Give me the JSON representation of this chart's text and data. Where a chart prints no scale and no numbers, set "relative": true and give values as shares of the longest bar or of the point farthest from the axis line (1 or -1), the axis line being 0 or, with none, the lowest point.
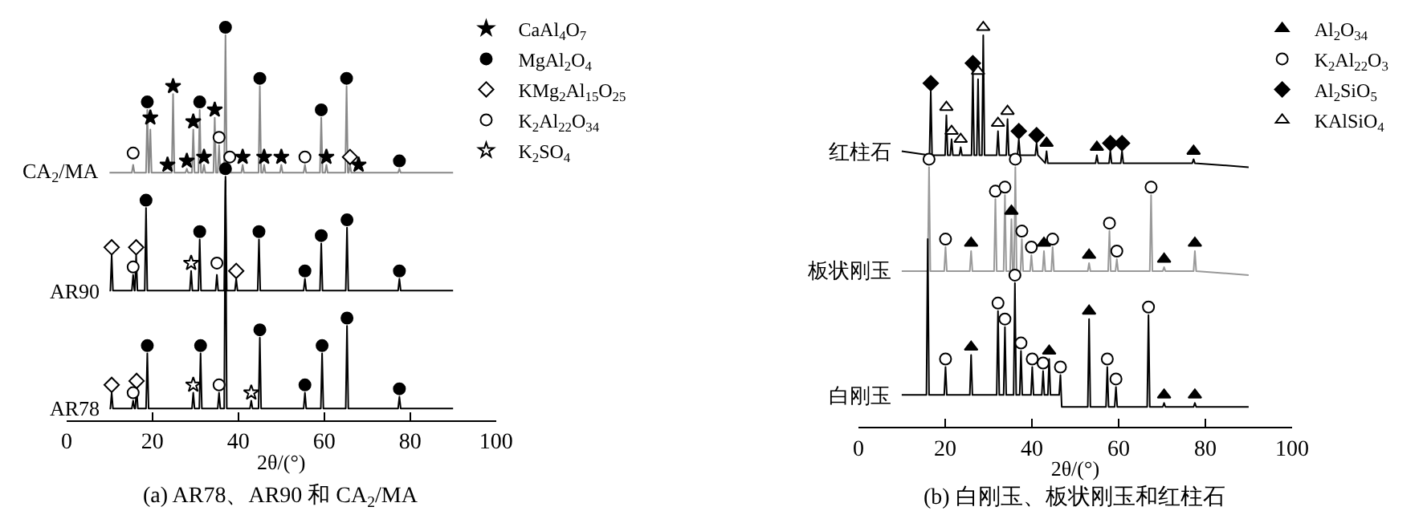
{
  "chart_data": [
    {
      "type": "line",
      "relative": true,
      "title": "(a) AR78、AR90 和 CA$_{2}$/MA",
      "xlabel": "2θ/(°)",
      "xlim": [
        0,
        100
      ],
      "xticks": [
        0,
        20,
        40,
        60,
        80,
        100
      ],
      "grid": false,
      "legend": "top right",
      "tick_labels": "x",
      "series": [
        {
          "name": "CA$_{2}$/MA",
          "color": "#888888",
          "x": [
            10,
            15.2,
            15.5,
            15.8,
            18.5,
            18.8,
            19.1,
            19.2,
            19.5,
            19.8,
            23.2,
            23.5,
            23.8,
            24.5,
            24.8,
            25.1,
            27.7,
            28,
            28.3,
            29.2,
            29.5,
            29.8,
            30.7,
            31,
            31.3,
            31.7,
            32,
            32.3,
            34.2,
            34.5,
            34.8,
            35.2,
            35.5,
            35.8,
            36.7,
            37,
            37.3,
            37.7,
            38,
            38.3,
            40.7,
            41,
            41.3,
            44.7,
            45,
            45.3,
            45.7,
            46,
            46.3,
            49.7,
            50,
            50.3,
            55.2,
            55.5,
            55.8,
            59,
            59.3,
            59.6,
            60.2,
            60.5,
            60.8,
            64.9,
            65.2,
            65.5,
            65.7,
            66,
            66.3,
            67.7,
            68,
            68.3,
            77.2,
            77.5,
            77.8,
            90
          ],
          "values": [
            0.63,
            0.63,
            0.65,
            0.63,
            0.63,
            0.79,
            0.63,
            0.63,
            0.74,
            0.63,
            0.63,
            0.63,
            0.63,
            0.63,
            0.83,
            0.63,
            0.63,
            0.64,
            0.63,
            0.63,
            0.74,
            0.63,
            0.63,
            0.79,
            0.63,
            0.63,
            0.65,
            0.63,
            0.63,
            0.77,
            0.63,
            0.63,
            0.7,
            0.63,
            0.63,
            0.98,
            0.63,
            0.63,
            0.65,
            0.63,
            0.63,
            0.65,
            0.63,
            0.63,
            0.85,
            0.63,
            0.63,
            0.65,
            0.63,
            0.63,
            0.65,
            0.63,
            0.63,
            0.65,
            0.63,
            0.63,
            0.77,
            0.63,
            0.63,
            0.65,
            0.63,
            0.63,
            0.85,
            0.63,
            0.63,
            0.65,
            0.63,
            0.63,
            0.63,
            0.63,
            0.63,
            0.64,
            0.63,
            0.63
          ]
        },
        {
          "name": "AR90",
          "color": "#000000",
          "x": [
            10,
            10.2,
            10.5,
            10.8,
            15.2,
            15.5,
            15.8,
            15.9,
            16.2,
            16.5,
            18.2,
            18.5,
            18.8,
            28.7,
            29,
            29.3,
            30.7,
            31,
            31.3,
            34.7,
            35,
            35.3,
            36.7,
            37,
            37.3,
            39.2,
            39.5,
            39.8,
            44.5,
            44.8,
            45.1,
            55.2,
            55.5,
            55.8,
            59,
            59.3,
            59.6,
            65,
            65.3,
            65.6,
            77.2,
            77.5,
            77.8,
            90
          ],
          "values": [
            0.33,
            0.33,
            0.42,
            0.33,
            0.33,
            0.37,
            0.33,
            0.33,
            0.42,
            0.33,
            0.33,
            0.54,
            0.33,
            0.33,
            0.38,
            0.33,
            0.33,
            0.46,
            0.33,
            0.33,
            0.37,
            0.33,
            0.33,
            0.62,
            0.33,
            0.33,
            0.36,
            0.33,
            0.33,
            0.46,
            0.33,
            0.33,
            0.36,
            0.33,
            0.33,
            0.45,
            0.33,
            0.33,
            0.49,
            0.33,
            0.33,
            0.36,
            0.33,
            0.33
          ]
        },
        {
          "name": "AR78",
          "color": "#000000",
          "x": [
            10,
            10.2,
            10.5,
            10.8,
            15.2,
            15.5,
            15.8,
            16,
            16.3,
            16.6,
            18.5,
            18.8,
            19.1,
            29.2,
            29.5,
            29.8,
            30.9,
            31.2,
            31.5,
            35.2,
            35.5,
            35.8,
            36.7,
            37,
            37.3,
            42.7,
            43,
            43.3,
            44.7,
            45,
            45.3,
            55.2,
            55.5,
            55.8,
            59.2,
            59.5,
            59.8,
            65,
            65.3,
            65.6,
            77.2,
            77.5,
            77.8,
            90
          ],
          "values": [
            0.03,
            0.03,
            0.07,
            0.03,
            0.03,
            0.05,
            0.03,
            0.03,
            0.08,
            0.03,
            0.03,
            0.17,
            0.03,
            0.03,
            0.07,
            0.03,
            0.03,
            0.17,
            0.03,
            0.03,
            0.07,
            0.03,
            0.03,
            0.61,
            0.03,
            0.03,
            0.05,
            0.03,
            0.03,
            0.21,
            0.03,
            0.03,
            0.07,
            0.03,
            0.03,
            0.17,
            0.03,
            0.03,
            0.24,
            0.03,
            0.03,
            0.06,
            0.03,
            0.03
          ]
        },
        {
          "name": "CaAl$_{4}$O$_{7}$",
          "type": "scatter",
          "marker": "star",
          "color": "#000000",
          "x": [
            19.5,
            23.5,
            24.8,
            28,
            29.5,
            32,
            34.5,
            41,
            46,
            50,
            60.5,
            68
          ],
          "values": [
            0.77,
            0.65,
            0.85,
            0.66,
            0.76,
            0.67,
            0.79,
            0.67,
            0.67,
            0.67,
            0.67,
            0.65
          ]
        },
        {
          "name": "MgAl$_{2}$O$_{4}$",
          "type": "scatter",
          "marker": "circle",
          "color": "#000000",
          "x": [
            18.8,
            31,
            37,
            45,
            59.3,
            65.2,
            77.5,
            18.5,
            31,
            37,
            44.8,
            55.5,
            59.3,
            65.3,
            77.5,
            18.8,
            31.2,
            45,
            55.5,
            59.5,
            65.3,
            77.5
          ],
          "values": [
            0.81,
            0.81,
            1.0,
            0.87,
            0.79,
            0.87,
            0.66,
            0.56,
            0.48,
            0.64,
            0.48,
            0.38,
            0.47,
            0.51,
            0.38,
            0.19,
            0.19,
            0.23,
            0.09,
            0.19,
            0.26,
            0.08
          ]
        },
        {
          "name": "KMg$_{2}$Al$_{15}$O$_{25}$",
          "type": "scatter",
          "marker": "diamond",
          "color": "#ffffff",
          "x": [
            66,
            10.5,
            16.2,
            39.5,
            10.5,
            16.3
          ],
          "values": [
            0.67,
            0.44,
            0.44,
            0.38,
            0.09,
            0.1
          ]
        },
        {
          "name": "K$_{2}$Al$_{22}$O$_{34}$",
          "type": "scatter",
          "marker": "circle",
          "color": "#ffffff",
          "x": [
            15.5,
            35.5,
            38,
            55.5,
            15.5,
            35,
            15.5,
            35.5
          ],
          "values": [
            0.68,
            0.72,
            0.67,
            0.67,
            0.39,
            0.4,
            0.07,
            0.09
          ]
        },
        {
          "name": "K$_{2}$SO$_{4}$",
          "type": "scatter",
          "marker": "star",
          "color": "#ffffff",
          "x": [
            29,
            29.5,
            43
          ],
          "values": [
            0.4,
            0.09,
            0.07
          ]
        }
      ]
    },
    {
      "type": "line",
      "relative": true,
      "title": "(b) 白刚玉、板状刚玉和红柱石",
      "xlabel": "2θ/(°)",
      "xlim": [
        0,
        100
      ],
      "xticks": [
        0,
        20,
        40,
        60,
        80,
        100
      ],
      "grid": false,
      "legend": "top right",
      "tick_labels": "x",
      "series": [
        {
          "name": "红柱石",
          "color": "#000000",
          "x": [
            10,
            16.4,
            16.7,
            17,
            20,
            20.3,
            20.6,
            21.2,
            21.5,
            21.8,
            23.3,
            23.6,
            23.9,
            26.1,
            26.4,
            26.7,
            27.3,
            27.6,
            27.9,
            28.5,
            28.8,
            29.1,
            31.9,
            32.2,
            32.5,
            34.1,
            34.4,
            34.7,
            36.7,
            37,
            37.3,
            40.8,
            41.1,
            41.4,
            43.1,
            43.4,
            43.7,
            54.7,
            55,
            55.3,
            57.8,
            58.1,
            58.4,
            60.5,
            60.8,
            61.1,
            77,
            77.3,
            77.6,
            90
          ],
          "values": [
            0.69,
            0.68,
            0.84,
            0.68,
            0.68,
            0.78,
            0.68,
            0.68,
            0.72,
            0.68,
            0.68,
            0.7,
            0.68,
            0.68,
            0.89,
            0.68,
            0.68,
            0.87,
            0.68,
            0.68,
            0.98,
            0.68,
            0.68,
            0.74,
            0.68,
            0.68,
            0.77,
            0.68,
            0.68,
            0.72,
            0.68,
            0.68,
            0.71,
            0.68,
            0.66,
            0.69,
            0.66,
            0.66,
            0.68,
            0.66,
            0.66,
            0.69,
            0.66,
            0.66,
            0.69,
            0.66,
            0.66,
            0.67,
            0.66,
            0.65
          ]
        },
        {
          "name": "板状刚玉",
          "color": "#999999",
          "x": [
            10,
            16,
            16.3,
            16.6,
            19.8,
            20.1,
            20.4,
            25.7,
            26,
            26.3,
            31.3,
            31.6,
            31.9,
            33.5,
            33.8,
            34.1,
            35,
            35.3,
            35.6,
            35.9,
            36.2,
            36.5,
            37.4,
            37.7,
            38,
            39.6,
            39.9,
            40.2,
            42.5,
            42.8,
            43.1,
            44.5,
            44.8,
            45.1,
            52.9,
            53.2,
            53.5,
            57.6,
            57.9,
            58.2,
            59.3,
            59.6,
            59.9,
            67.2,
            67.5,
            67.8,
            70.2,
            70.5,
            70.8,
            77.3,
            77.6,
            77.9,
            90
          ],
          "values": [
            0.39,
            0.39,
            0.65,
            0.39,
            0.39,
            0.45,
            0.39,
            0.39,
            0.44,
            0.39,
            0.39,
            0.57,
            0.39,
            0.39,
            0.58,
            0.39,
            0.39,
            0.52,
            0.39,
            0.39,
            0.65,
            0.39,
            0.39,
            0.47,
            0.39,
            0.39,
            0.43,
            0.39,
            0.39,
            0.44,
            0.39,
            0.39,
            0.45,
            0.39,
            0.39,
            0.41,
            0.39,
            0.39,
            0.49,
            0.39,
            0.39,
            0.42,
            0.39,
            0.39,
            0.58,
            0.39,
            0.39,
            0.4,
            0.39,
            0.39,
            0.44,
            0.39,
            0.38
          ]
        },
        {
          "name": "白刚玉",
          "color": "#000000",
          "x": [
            10,
            15.7,
            16,
            16.3,
            19.8,
            20.1,
            20.4,
            25.7,
            26,
            26.3,
            31.9,
            32.2,
            32.5,
            33.5,
            33.8,
            34.1,
            35.8,
            36.1,
            36.4,
            37.2,
            37.5,
            37.8,
            39.8,
            40.1,
            40.4,
            42.3,
            42.6,
            42.9,
            43.7,
            44,
            44.3,
            46.3,
            46.6,
            46.9,
            52.9,
            53.2,
            53.5,
            57.1,
            57.4,
            57.7,
            59.1,
            59.4,
            59.7,
            66.6,
            66.9,
            67.2,
            70.2,
            70.5,
            70.8,
            77.3,
            77.6,
            77.9,
            90
          ],
          "values": [
            0.08,
            0.08,
            0.47,
            0.08,
            0.08,
            0.15,
            0.08,
            0.08,
            0.18,
            0.08,
            0.08,
            0.29,
            0.08,
            0.08,
            0.25,
            0.08,
            0.08,
            0.36,
            0.08,
            0.08,
            0.19,
            0.08,
            0.08,
            0.15,
            0.08,
            0.08,
            0.14,
            0.08,
            0.08,
            0.17,
            0.08,
            0.08,
            0.13,
            0.05,
            0.05,
            0.27,
            0.05,
            0.05,
            0.15,
            0.05,
            0.05,
            0.1,
            0.05,
            0.05,
            0.28,
            0.05,
            0.05,
            0.06,
            0.05,
            0.05,
            0.06,
            0.05,
            0.05
          ]
        },
        {
          "name": "Al$_{2}$O$_{34}$",
          "type": "scatter",
          "marker": "triangle",
          "color": "#000000",
          "x": [
            43.4,
            55,
            77.3,
            26,
            35.3,
            42.8,
            53.2,
            70.5,
            77.6,
            26,
            44,
            53.2,
            70.5,
            77.6
          ],
          "values": [
            0.71,
            0.7,
            0.69,
            0.46,
            0.54,
            0.46,
            0.43,
            0.42,
            0.46,
            0.2,
            0.19,
            0.29,
            0.08,
            0.08
          ]
        },
        {
          "name": "K$_{2}$Al$_{22}$O$_{3}$",
          "type": "scatter",
          "marker": "circle",
          "color": "#ffffff",
          "x": [
            16.3,
            20.1,
            31.6,
            33.8,
            36.2,
            37.7,
            39.9,
            44.8,
            57.9,
            59.6,
            67.5,
            20.1,
            32.2,
            33.8,
            36.1,
            37.5,
            40.1,
            42.6,
            46.6,
            57.4,
            59.4,
            66.9
          ],
          "values": [
            0.67,
            0.47,
            0.59,
            0.6,
            0.67,
            0.49,
            0.45,
            0.47,
            0.51,
            0.44,
            0.6,
            0.17,
            0.31,
            0.27,
            0.38,
            0.21,
            0.17,
            0.16,
            0.15,
            0.17,
            0.12,
            0.3
          ]
        },
        {
          "name": "Al$_{2}$SiO$_{5}$",
          "type": "scatter",
          "marker": "diamond",
          "color": "#000000",
          "x": [
            16.7,
            26.4,
            37,
            41.1,
            58.1,
            60.8
          ],
          "values": [
            0.86,
            0.91,
            0.74,
            0.73,
            0.71,
            0.71
          ]
        },
        {
          "name": "KAlSiO$_{4}$",
          "type": "scatter",
          "marker": "triangle",
          "color": "#ffffff",
          "x": [
            20.3,
            21.5,
            23.6,
            27.6,
            28.8,
            32.2,
            34.4
          ],
          "values": [
            0.8,
            0.74,
            0.72,
            0.89,
            1.0,
            0.76,
            0.79
          ]
        }
      ]
    }
  ]
}
